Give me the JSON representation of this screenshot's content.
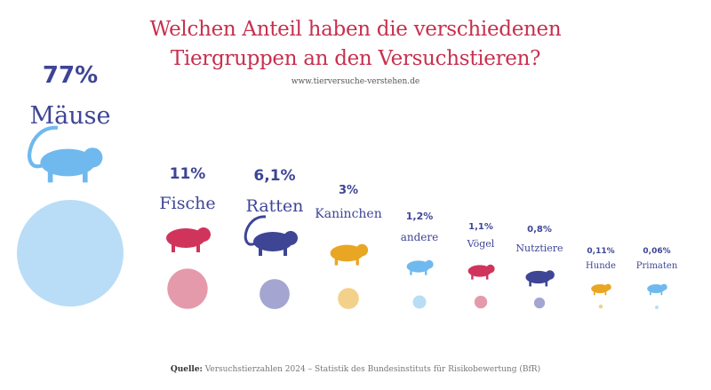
{
  "title_line1": "Welchen Anteil haben die verschiedenen",
  "title_line2": "Tiergruppen an den Versuchstieren?",
  "website": "www.tierversuche-verstehen.de",
  "source_label": "Quelle:",
  "source_text": "Versuchstierzahlen 2024 – Statistik des Bundesinstituts für Risikobewertung (BfR)",
  "chart_data": {
    "type": "bubble",
    "unit": "%",
    "categories": [
      "Mäuse",
      "Fische",
      "Ratten",
      "Kaninchen",
      "andere",
      "Vögel",
      "Nutztiere",
      "Hunde",
      "Primaten"
    ],
    "value_labels": [
      "77%",
      "11%",
      "6,1%",
      "3%",
      "1,2%",
      "1,1%",
      "0,8%",
      "0,11%",
      "0,06%"
    ],
    "values": [
      77,
      11,
      6.1,
      3,
      1.2,
      1.1,
      0.8,
      0.11,
      0.06
    ],
    "icons": [
      "mouse-icon",
      "fish-icon",
      "rat-icon",
      "rabbit-icon",
      "frog-icon",
      "bird-icon",
      "cow-icon",
      "dog-icon",
      "monkey-icon"
    ],
    "icon_colors": [
      "#6fb9ee",
      "#d1345b",
      "#3e4595",
      "#e8a623",
      "#6fb9ee",
      "#d1345b",
      "#3e4595",
      "#e8a623",
      "#6fb9ee"
    ],
    "bubble_colors": [
      "#b9ddf6",
      "#e59aab",
      "#a4a5d1",
      "#f3d18b",
      "#b9ddf6",
      "#e59aab",
      "#a4a5d1",
      "#f3d18b",
      "#b9ddf6"
    ]
  }
}
